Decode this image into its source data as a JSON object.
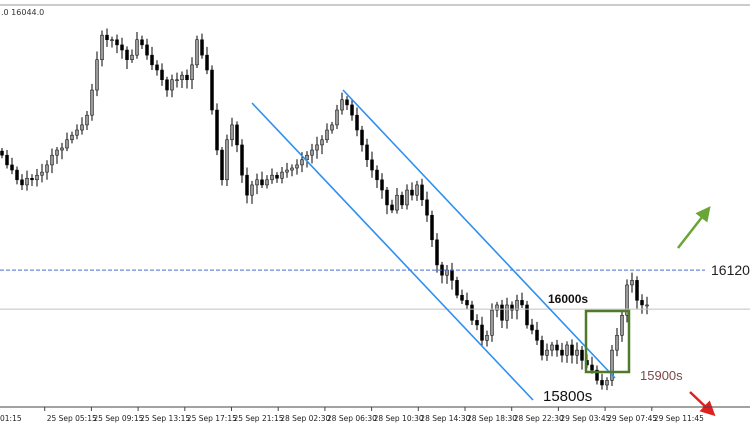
{
  "header": {
    "info_text": ".0 16044.0"
  },
  "chart_data": {
    "type": "candlestick",
    "title": "",
    "xlabel": "",
    "ylabel": "",
    "ylim": [
      15857,
      16627
    ],
    "x_ticks": [
      "01:15",
      "25 Sep 05:15",
      "25 Sep 09:15",
      "25 Sep 13:15",
      "25 Sep 17:15",
      "25 Sep 21:15",
      "28 Sep 02:30",
      "28 Sep 06:30",
      "28 Sep 10:30",
      "28 Sep 14:30",
      "28 Sep 18:30",
      "28 Sep 22:30",
      "29 Sep 03:45",
      "29 Sep 07:45",
      "29 Sep 11:45"
    ],
    "closes": [
      16344,
      16325,
      16315,
      16296,
      16286,
      16299,
      16296,
      16305,
      16311,
      16325,
      16344,
      16354,
      16358,
      16374,
      16383,
      16393,
      16403,
      16422,
      16471,
      16530,
      16578,
      16569,
      16569,
      16559,
      16549,
      16530,
      16539,
      16569,
      16559,
      16539,
      16520,
      16510,
      16491,
      16471,
      16491,
      16491,
      16500,
      16491,
      16520,
      16569,
      16539,
      16510,
      16432,
      16354,
      16296,
      16374,
      16403,
      16364,
      16305,
      16266,
      16286,
      16296,
      16286,
      16296,
      16305,
      16299,
      16311,
      16315,
      16319,
      16325,
      16335,
      16344,
      16354,
      16364,
      16374,
      16393,
      16403,
      16432,
      16452,
      16442,
      16422,
      16393,
      16364,
      16335,
      16315,
      16296,
      16276,
      16247,
      16237,
      16266,
      16247,
      16276,
      16266,
      16286,
      16257,
      16227,
      16179,
      16130,
      16110,
      16120,
      16100,
      16071,
      16061,
      16052,
      16022,
      16013,
      15983,
      15993,
      16042,
      16052,
      16022,
      16052,
      16042,
      16061,
      16052,
      16013,
      16003,
      15983,
      15954,
      15964,
      15974,
      15964,
      15954,
      15974,
      15954,
      15964,
      15944,
      15935,
      15925,
      15905,
      15896,
      15905,
      15964,
      15993,
      16032,
      16091,
      16100,
      16061,
      16052,
      16052
    ],
    "current_price": 16044,
    "levels": [
      {
        "price": 16120,
        "label": "16120",
        "style": "dashed",
        "color": "#4a6fd0"
      }
    ],
    "annotations": [
      {
        "text": "16000s",
        "bold": true
      },
      {
        "text": "15900s",
        "color": "#7a4a4a"
      },
      {
        "text": "15800s"
      }
    ],
    "channel_color": "#2f8ff0",
    "box_color": "#4f7a2a",
    "up_arrow_color": "#6aa535",
    "down_arrow_color": "#e02020",
    "up_candle_color": "#9a9a9a",
    "down_candle_color": "#000000"
  }
}
